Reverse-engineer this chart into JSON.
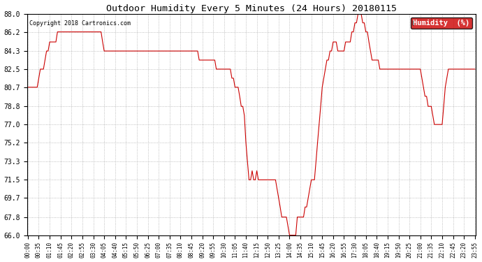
{
  "title": "Outdoor Humidity Every 5 Minutes (24 Hours) 20180115",
  "copyright": "Copyright 2018 Cartronics.com",
  "legend_label": "Humidity  (%)",
  "line_color": "#cc0000",
  "background_color": "#ffffff",
  "grid_color": "#999999",
  "ylim": [
    66.0,
    88.0
  ],
  "yticks": [
    66.0,
    67.8,
    69.7,
    71.5,
    73.3,
    75.2,
    77.0,
    78.8,
    80.7,
    82.5,
    84.3,
    86.2,
    88.0
  ],
  "humidity_values": [
    80.7,
    80.7,
    80.7,
    80.7,
    80.7,
    80.7,
    80.7,
    81.6,
    82.5,
    82.5,
    82.5,
    83.4,
    84.3,
    84.3,
    85.2,
    85.2,
    85.2,
    85.2,
    85.2,
    86.2,
    86.2,
    86.2,
    86.2,
    86.2,
    86.2,
    86.2,
    86.2,
    86.2,
    86.2,
    86.2,
    86.2,
    86.2,
    86.2,
    86.2,
    86.2,
    86.2,
    86.2,
    86.2,
    86.2,
    86.2,
    86.2,
    86.2,
    86.2,
    86.2,
    86.2,
    86.2,
    86.2,
    86.2,
    85.2,
    84.3,
    84.3,
    84.3,
    84.3,
    84.3,
    84.3,
    84.3,
    84.3,
    84.3,
    84.3,
    84.3,
    84.3,
    84.3,
    84.3,
    84.3,
    84.3,
    84.3,
    84.3,
    84.3,
    84.3,
    84.3,
    84.3,
    84.3,
    84.3,
    84.3,
    84.3,
    84.3,
    84.3,
    84.3,
    84.3,
    84.3,
    84.3,
    84.3,
    84.3,
    84.3,
    84.3,
    84.3,
    84.3,
    84.3,
    84.3,
    84.3,
    84.3,
    84.3,
    84.3,
    84.3,
    84.3,
    84.3,
    84.3,
    84.3,
    84.3,
    84.3,
    84.3,
    84.3,
    84.3,
    84.3,
    84.3,
    84.3,
    84.3,
    84.3,
    84.3,
    84.3,
    83.4,
    83.4,
    83.4,
    83.4,
    83.4,
    83.4,
    83.4,
    83.4,
    83.4,
    83.4,
    83.4,
    82.5,
    82.5,
    82.5,
    82.5,
    82.5,
    82.5,
    82.5,
    82.5,
    82.5,
    82.5,
    81.6,
    81.6,
    80.7,
    80.7,
    80.7,
    79.8,
    78.8,
    78.8,
    77.9,
    75.2,
    73.3,
    71.5,
    71.5,
    72.4,
    71.5,
    71.5,
    72.4,
    71.5,
    71.5,
    71.5,
    71.5,
    71.5,
    71.5,
    71.5,
    71.5,
    71.5,
    71.5,
    71.5,
    71.5,
    70.6,
    69.7,
    68.8,
    67.8,
    67.8,
    67.8,
    67.8,
    66.9,
    66.0,
    66.0,
    66.0,
    66.0,
    66.0,
    67.8,
    67.8,
    67.8,
    67.8,
    67.8,
    68.8,
    68.8,
    69.7,
    70.6,
    71.5,
    71.5,
    71.5,
    73.3,
    75.2,
    77.0,
    78.8,
    80.7,
    81.6,
    82.5,
    83.4,
    83.4,
    84.3,
    84.3,
    85.2,
    85.2,
    85.2,
    84.3,
    84.3,
    84.3,
    84.3,
    84.3,
    85.2,
    85.2,
    85.2,
    85.2,
    86.2,
    86.2,
    87.1,
    87.1,
    88.0,
    88.0,
    88.0,
    87.1,
    87.1,
    86.2,
    86.2,
    85.2,
    84.3,
    83.4,
    83.4,
    83.4,
    83.4,
    83.4,
    82.5,
    82.5,
    82.5,
    82.5,
    82.5,
    82.5,
    82.5,
    82.5,
    82.5,
    82.5,
    82.5,
    82.5,
    82.5,
    82.5,
    82.5,
    82.5,
    82.5,
    82.5,
    82.5,
    82.5,
    82.5,
    82.5,
    82.5,
    82.5,
    82.5,
    82.5,
    82.5,
    81.6,
    80.7,
    79.8,
    79.8,
    78.8,
    78.8,
    78.8,
    77.9,
    77.0,
    77.0,
    77.0,
    77.0,
    77.0,
    77.0,
    78.8,
    80.7,
    81.6,
    82.5,
    82.5,
    82.5,
    82.5,
    82.5,
    82.5,
    82.5,
    82.5,
    82.5,
    82.5,
    82.5,
    82.5,
    82.5,
    82.5,
    82.5,
    82.5,
    82.5,
    82.5
  ]
}
